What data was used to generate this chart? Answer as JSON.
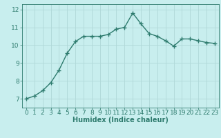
{
  "x": [
    0,
    1,
    2,
    3,
    4,
    5,
    6,
    7,
    8,
    9,
    10,
    11,
    12,
    13,
    14,
    15,
    16,
    17,
    18,
    19,
    20,
    21,
    22,
    23
  ],
  "y": [
    7.0,
    7.15,
    7.45,
    7.9,
    8.6,
    9.55,
    10.2,
    10.5,
    10.5,
    10.5,
    10.6,
    10.9,
    11.0,
    11.8,
    11.2,
    10.65,
    10.5,
    10.25,
    9.95,
    10.35,
    10.35,
    10.25,
    10.15,
    10.1
  ],
  "line_color": "#2e7b6e",
  "marker": "+",
  "bg_color": "#c8eeee",
  "grid_color": "#b0d8d8",
  "xlabel": "Humidex (Indice chaleur)",
  "ylim": [
    6.5,
    12.3
  ],
  "xlim": [
    -0.5,
    23.5
  ],
  "yticks": [
    7,
    8,
    9,
    10,
    11,
    12
  ],
  "xticks": [
    0,
    1,
    2,
    3,
    4,
    5,
    6,
    7,
    8,
    9,
    10,
    11,
    12,
    13,
    14,
    15,
    16,
    17,
    18,
    19,
    20,
    21,
    22,
    23
  ],
  "linewidth": 1.0,
  "markersize": 4,
  "font_color": "#2e7b6e",
  "xlabel_fontsize": 7,
  "tick_fontsize": 6.5
}
